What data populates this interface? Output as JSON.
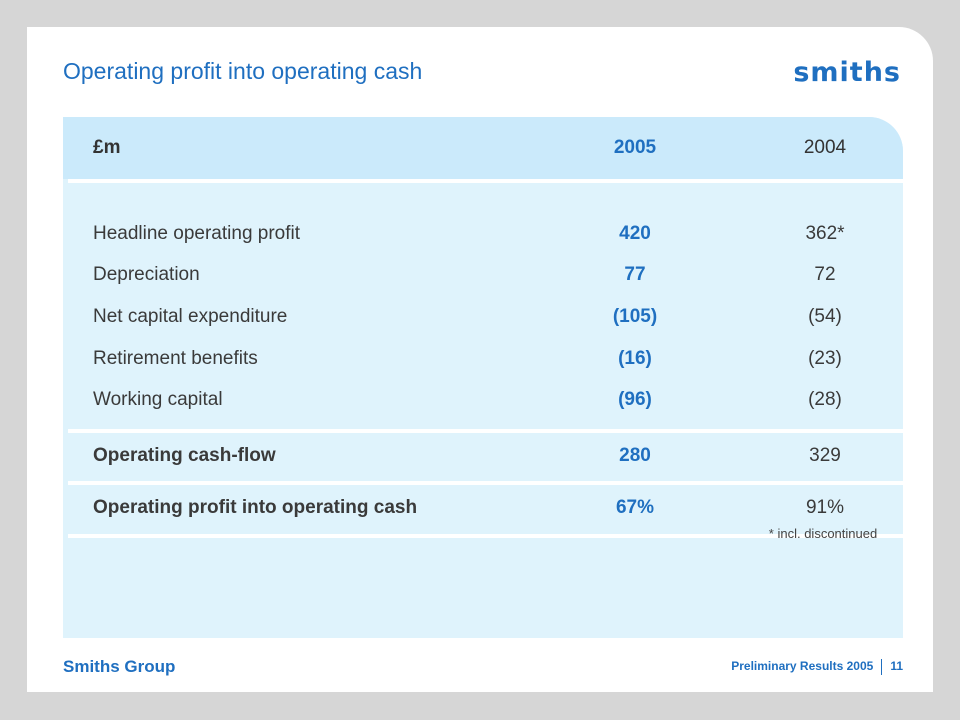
{
  "header": {
    "title": "Operating profit into operating cash",
    "logo": "smiths"
  },
  "table": {
    "columns": [
      "£m",
      "2005",
      "2004"
    ],
    "rows": [
      {
        "label": "Headline operating profit",
        "y2005": "420",
        "y2004": "362*"
      },
      {
        "label": "Depreciation",
        "y2005": "77",
        "y2004": "72"
      },
      {
        "label": "Net capital expenditure",
        "y2005": "(105)",
        "y2004": "(54)"
      },
      {
        "label": "Retirement benefits",
        "y2005": "(16)",
        "y2004": "(23)"
      },
      {
        "label": "Working capital",
        "y2005": "(96)",
        "y2004": "(28)"
      },
      {
        "label": "Operating cash-flow",
        "y2005": "280",
        "y2004": "329"
      },
      {
        "label": "Operating profit into operating cash",
        "y2005": "67%",
        "y2004": "91%"
      }
    ],
    "footnote": "* incl. discontinued"
  },
  "footer": {
    "company": "Smiths Group",
    "presentation": "Preliminary Results 2005",
    "page_number": "11"
  },
  "colors": {
    "accent": "#1f6fc0",
    "panel": "#dff3fc",
    "header_band": "#cbeafb"
  }
}
